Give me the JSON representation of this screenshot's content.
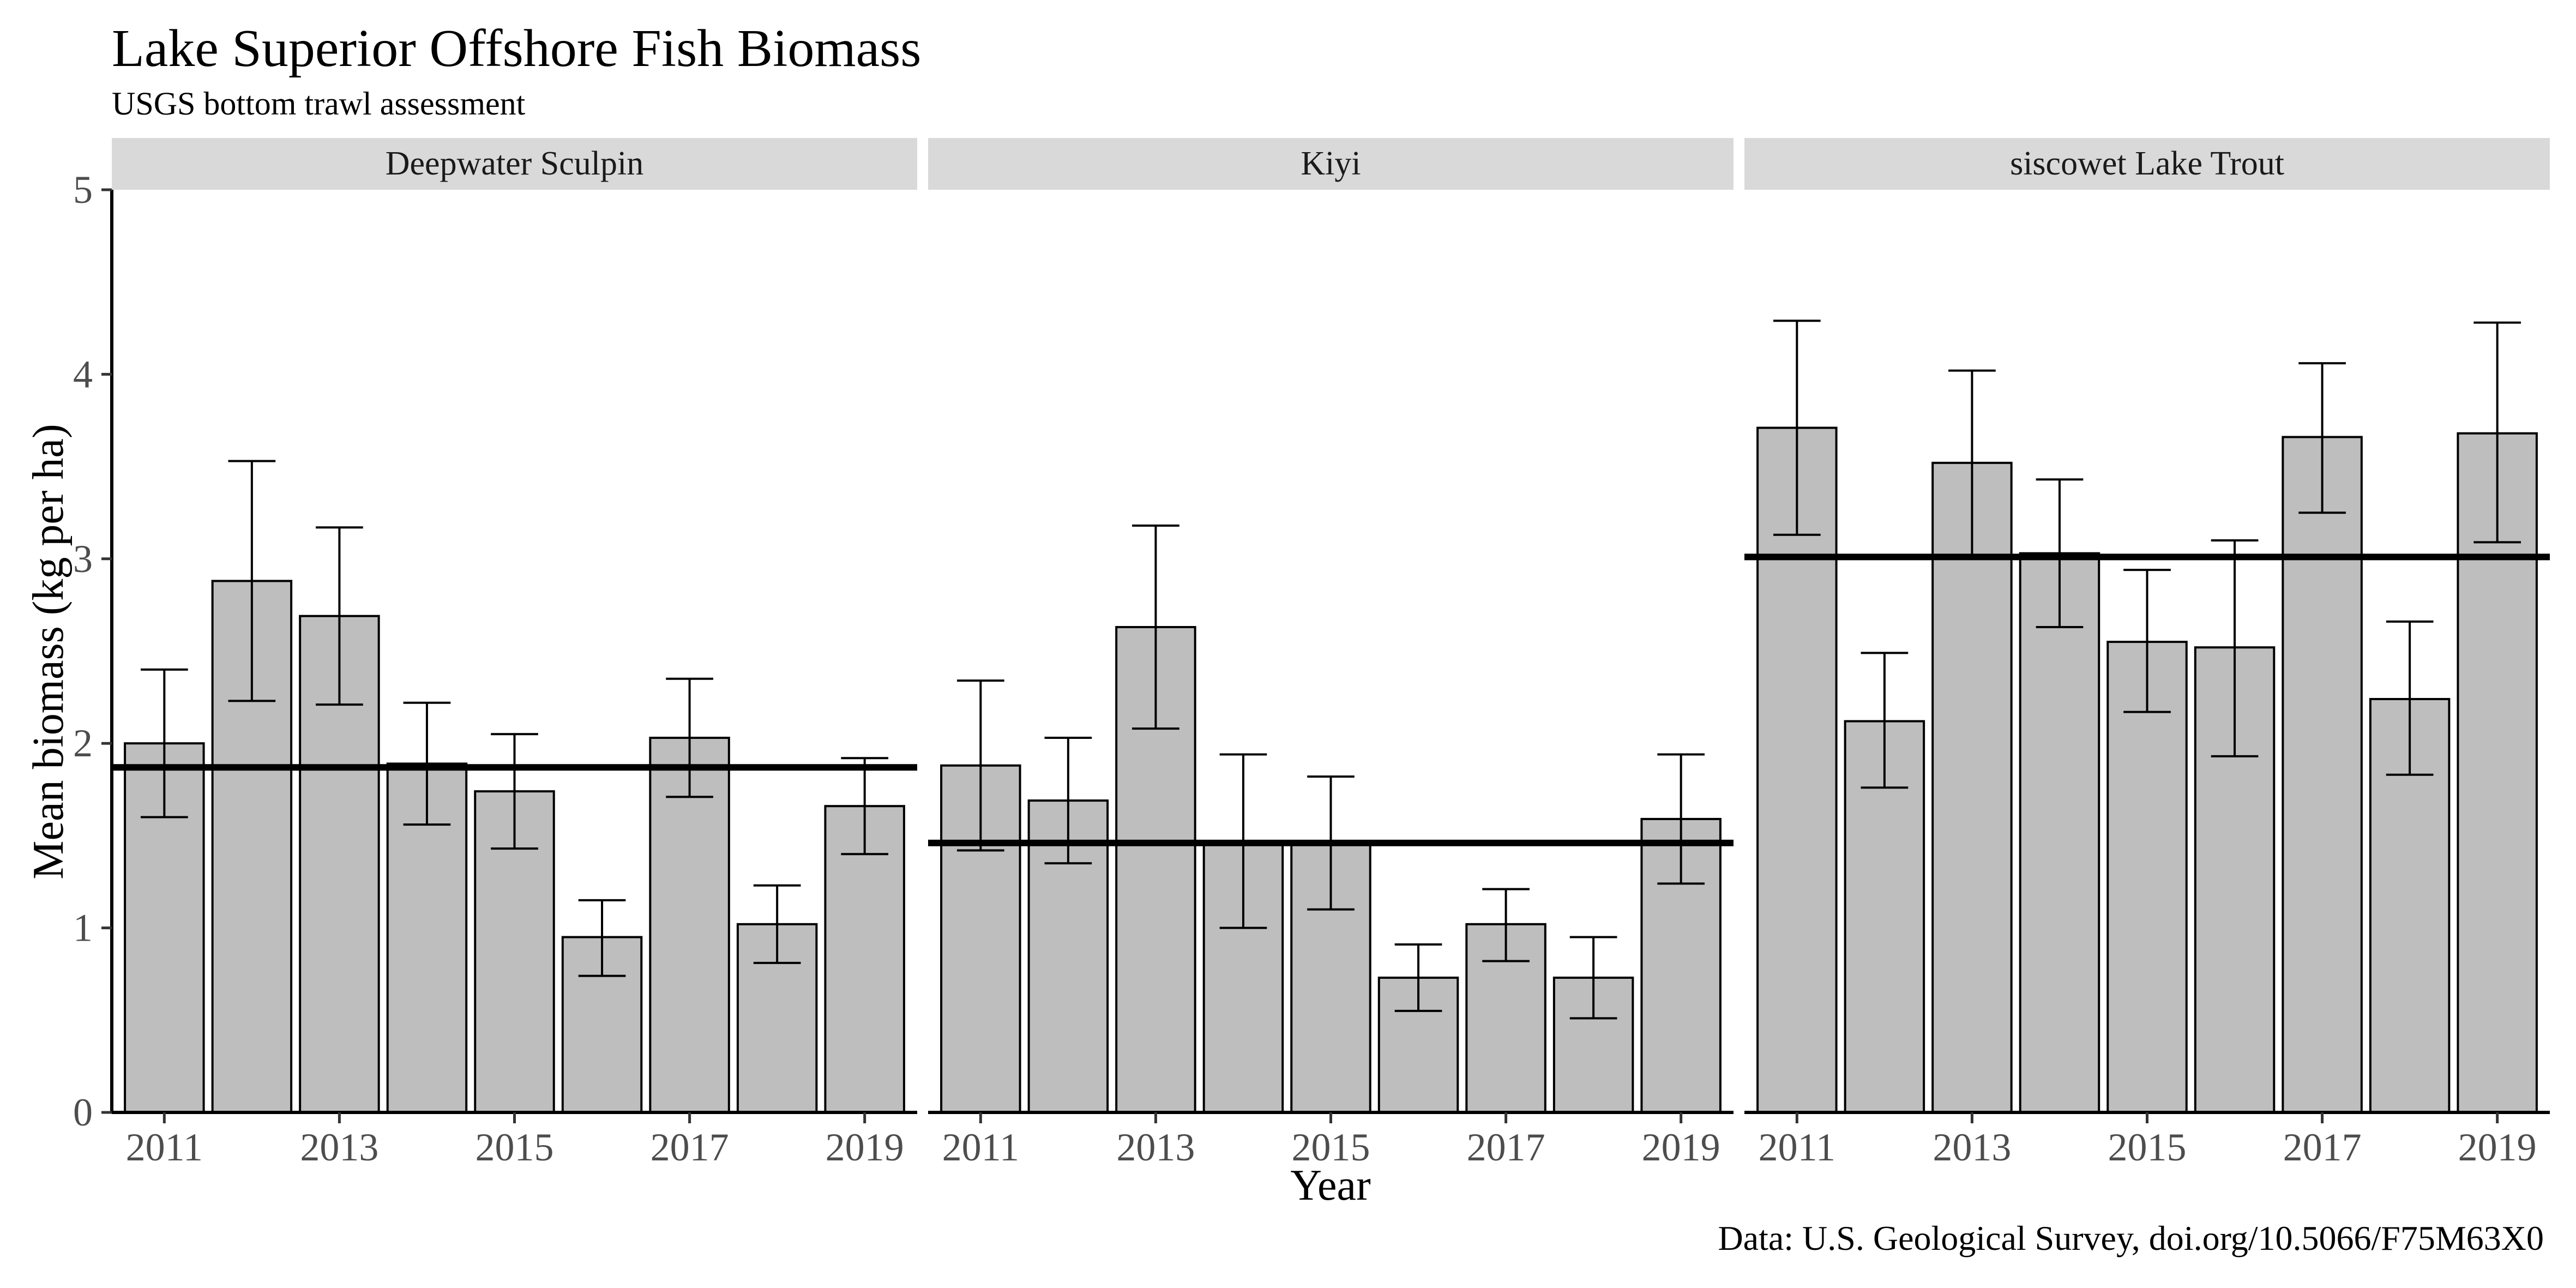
{
  "title": "Lake Superior Offshore Fish Biomass",
  "subtitle": "USGS bottom trawl assessment",
  "caption": "Data: U.S. Geological Survey, doi.org/10.5066/F75M63X0",
  "chart_data": {
    "type": "bar",
    "title": "Lake Superior Offshore Fish Biomass",
    "subtitle": "USGS bottom trawl assessment",
    "xlabel": "Year",
    "ylabel": "Mean biomass (kg per ha)",
    "ylim": [
      0,
      5
    ],
    "y_ticks": [
      0,
      1,
      2,
      3,
      4,
      5
    ],
    "x_years": [
      2011,
      2012,
      2013,
      2014,
      2015,
      2016,
      2017,
      2018,
      2019
    ],
    "x_tick_labels": [
      "2011",
      "2013",
      "2015",
      "2017",
      "2019"
    ],
    "grid": false,
    "legend": "none",
    "colors": {
      "bar_fill": "#bebebe",
      "bar_stroke": "#000000",
      "strip_fill": "#d9d9d9",
      "mean_line": "#000000",
      "axis_text": "#4d4d4d"
    },
    "facets": [
      {
        "name": "Deepwater Sculpin",
        "values": [
          2.0,
          2.88,
          2.69,
          1.89,
          1.74,
          0.95,
          2.03,
          1.02,
          1.66
        ],
        "lower": [
          1.6,
          2.23,
          2.21,
          1.56,
          1.43,
          0.74,
          1.71,
          0.81,
          1.4
        ],
        "upper": [
          2.4,
          3.53,
          3.17,
          2.22,
          2.05,
          1.15,
          2.35,
          1.23,
          1.92
        ],
        "mean": 1.87
      },
      {
        "name": "Kiyi",
        "values": [
          1.88,
          1.69,
          2.63,
          1.47,
          1.46,
          0.73,
          1.02,
          0.73,
          1.59
        ],
        "lower": [
          1.42,
          1.35,
          2.08,
          1.0,
          1.1,
          0.55,
          0.82,
          0.51,
          1.24
        ],
        "upper": [
          2.34,
          2.03,
          3.18,
          1.94,
          1.82,
          0.91,
          1.21,
          0.95,
          1.94
        ],
        "mean": 1.46
      },
      {
        "name": "siscowet Lake Trout",
        "values": [
          3.71,
          2.12,
          3.52,
          3.03,
          2.55,
          2.52,
          3.66,
          2.24,
          3.68
        ],
        "lower": [
          3.13,
          1.76,
          3.02,
          2.63,
          2.17,
          1.93,
          3.25,
          1.83,
          3.09
        ],
        "upper": [
          4.29,
          2.49,
          4.02,
          3.43,
          2.94,
          3.1,
          4.06,
          2.66,
          4.28
        ],
        "mean": 3.01
      }
    ]
  }
}
